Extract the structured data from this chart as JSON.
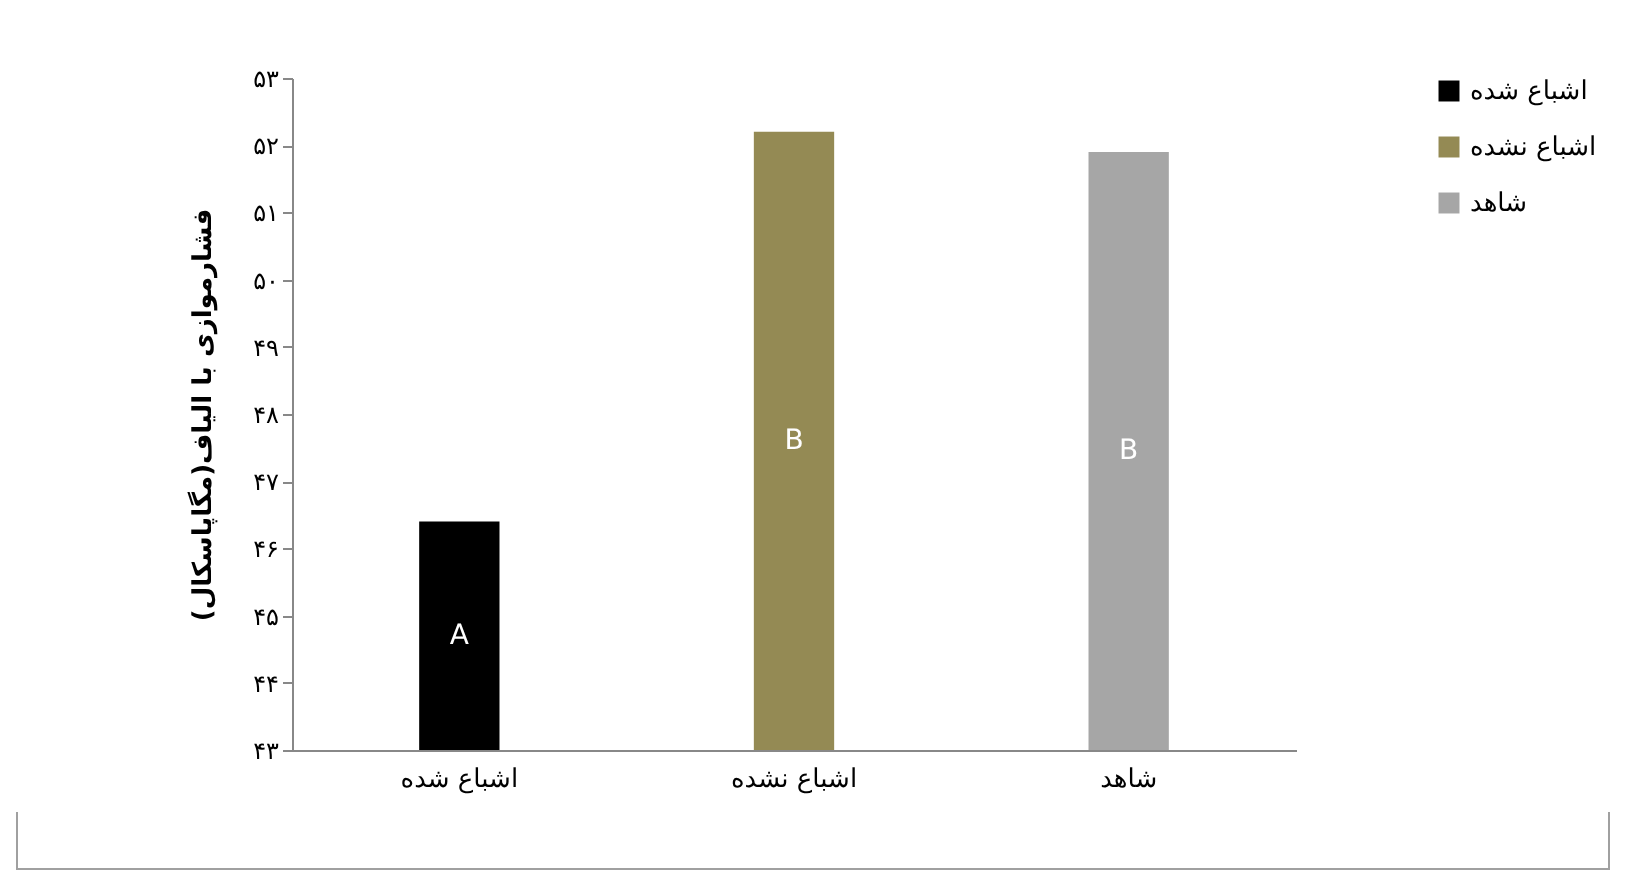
{
  "chart_data": {
    "type": "bar",
    "categories": [
      "اشباع شده",
      "اشباع نشده",
      "شاهد"
    ],
    "stacked": true,
    "series": [
      {
        "name": "اشباع شده",
        "color": "#000000",
        "values": [
          46.4,
          null,
          null
        ],
        "value_labels": [
          "A",
          null,
          null
        ]
      },
      {
        "name": "اشباع نشده",
        "color": "#948a54",
        "values": [
          null,
          52.2,
          null
        ],
        "value_labels": [
          null,
          "B",
          null
        ]
      },
      {
        "name": "شاهد",
        "color": "#a6a6a6",
        "values": [
          null,
          null,
          51.9
        ],
        "value_labels": [
          null,
          null,
          "B"
        ]
      }
    ],
    "ylabel": "فشارموازی با الیاف(مگاپاسکال)",
    "ylim": [
      43,
      53
    ],
    "yticks": [
      {
        "value": 43,
        "label": "۴۳"
      },
      {
        "value": 44,
        "label": "۴۴"
      },
      {
        "value": 45,
        "label": "۴۵"
      },
      {
        "value": 46,
        "label": "۴۶"
      },
      {
        "value": 47,
        "label": "۴۷"
      },
      {
        "value": 48,
        "label": "۴۸"
      },
      {
        "value": 49,
        "label": "۴۹"
      },
      {
        "value": 50,
        "label": "۵۰"
      },
      {
        "value": 51,
        "label": "۵۱"
      },
      {
        "value": 52,
        "label": "۵۲"
      },
      {
        "value": 53,
        "label": "۵۳"
      }
    ],
    "legend": "top right",
    "grid": false
  }
}
